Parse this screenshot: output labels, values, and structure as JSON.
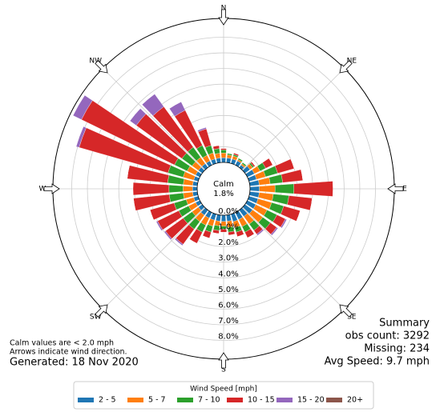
{
  "chart_data": {
    "type": "windrose",
    "x": [
      0,
      10,
      20,
      30,
      40,
      50,
      60,
      70,
      80,
      90,
      100,
      110,
      120,
      130,
      140,
      150,
      160,
      170,
      180,
      190,
      200,
      210,
      220,
      230,
      240,
      250,
      260,
      270,
      280,
      290,
      300,
      310,
      320,
      330,
      340,
      350
    ],
    "xticks": [
      {
        "value": 0,
        "label": "N"
      },
      {
        "value": 45,
        "label": "NE"
      },
      {
        "value": 90,
        "label": "E"
      },
      {
        "value": 135,
        "label": "SE"
      },
      {
        "value": 180,
        "label": "S"
      },
      {
        "value": 225,
        "label": "SW"
      },
      {
        "value": 270,
        "label": "W"
      },
      {
        "value": 315,
        "label": "NW"
      }
    ],
    "ylim": [
      0,
      9.2
    ],
    "yticks": [
      {
        "value": 0,
        "label": "0.0%"
      },
      {
        "value": 1,
        "label": "1.0%"
      },
      {
        "value": 2,
        "label": "2.0%"
      },
      {
        "value": 3,
        "label": "3.0%"
      },
      {
        "value": 4,
        "label": "4.0%"
      },
      {
        "value": 5,
        "label": "5.0%"
      },
      {
        "value": 6,
        "label": "6.0%"
      },
      {
        "value": 7,
        "label": "7.0%"
      },
      {
        "value": 8,
        "label": "8.0%"
      }
    ],
    "grid": true,
    "calm": {
      "label": "Calm",
      "value": 1.8,
      "value_label": "1.8%"
    },
    "legend_title": "Wind Speed [mph]",
    "series": [
      {
        "name": "2 - 5",
        "color": "#1f77b4",
        "values": [
          0.3,
          0.3,
          0.3,
          0.3,
          0.2,
          0.4,
          0.5,
          0.5,
          0.6,
          0.6,
          0.6,
          0.6,
          0.6,
          0.6,
          0.5,
          0.5,
          0.5,
          0.4,
          0.4,
          0.4,
          0.4,
          0.4,
          0.4,
          0.3,
          0.3,
          0.3,
          0.3,
          0.3,
          0.3,
          0.3,
          0.3,
          0.3,
          0.3,
          0.3,
          0.3,
          0.3
        ]
      },
      {
        "name": "5 - 7",
        "color": "#ff7f0e",
        "values": [
          0.3,
          0.2,
          0.2,
          0.1,
          0.1,
          0.2,
          0.4,
          0.6,
          0.7,
          1.0,
          0.9,
          0.9,
          0.8,
          0.8,
          0.6,
          0.5,
          0.4,
          0.4,
          0.3,
          0.3,
          0.4,
          0.5,
          0.5,
          0.5,
          0.5,
          0.5,
          0.6,
          0.6,
          0.6,
          0.7,
          0.6,
          0.5,
          0.5,
          0.4,
          0.4,
          0.3
        ]
      },
      {
        "name": "7 - 10",
        "color": "#2ca02c",
        "values": [
          0.2,
          0.1,
          0.1,
          0.1,
          0.1,
          0.1,
          0.4,
          0.8,
          0.8,
          1.2,
          1.0,
          0.8,
          0.7,
          0.6,
          0.5,
          0.4,
          0.3,
          0.3,
          0.2,
          0.3,
          0.4,
          0.5,
          0.6,
          0.7,
          0.7,
          0.8,
          0.9,
          0.9,
          1.0,
          1.0,
          0.9,
          0.8,
          0.8,
          0.7,
          0.5,
          0.3
        ]
      },
      {
        "name": "10 - 15",
        "color": "#d62728",
        "values": [
          0.1,
          0,
          0.1,
          0,
          0,
          0.1,
          0.5,
          1.1,
          1.3,
          2.5,
          1.5,
          1.1,
          0.6,
          0.5,
          0.3,
          0.4,
          0.3,
          0.2,
          0.2,
          0.2,
          0.4,
          0.8,
          1.2,
          1.4,
          1.5,
          1.6,
          2.3,
          2.3,
          2.6,
          5.9,
          6.6,
          3.6,
          3.2,
          2.5,
          1.1,
          0.2
        ]
      },
      {
        "name": "15 - 20",
        "color": "#9467bd",
        "values": [
          0,
          0,
          0,
          0,
          0,
          0,
          0,
          0,
          0,
          0,
          0,
          0,
          0.1,
          0.1,
          0.1,
          0,
          0,
          0,
          0,
          0,
          0,
          0,
          0.1,
          0.1,
          0.1,
          0,
          0,
          0,
          0,
          0.2,
          0.6,
          0.5,
          1.0,
          0.6,
          0.1,
          0
        ]
      },
      {
        "name": "20+",
        "color": "#8c564b",
        "values": [
          0,
          0,
          0,
          0,
          0,
          0,
          0,
          0,
          0,
          0,
          0,
          0,
          0,
          0,
          0,
          0,
          0,
          0,
          0,
          0,
          0,
          0,
          0,
          0,
          0,
          0,
          0,
          0,
          0,
          0,
          0,
          0,
          0,
          0,
          0,
          0
        ]
      }
    ],
    "notes": [
      "Calm values are < 2.0 mph",
      "Arrows indicate wind direction."
    ],
    "generated": "Generated: 18 Nov 2020",
    "summary": [
      "Summary",
      "obs count: 3292",
      "Missing: 234",
      "Avg Speed: 9.7 mph"
    ]
  }
}
